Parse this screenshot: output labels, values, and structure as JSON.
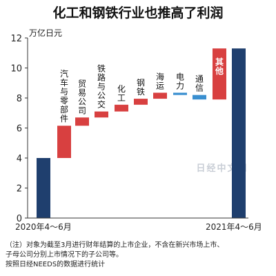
{
  "chart_data": {
    "type": "bar",
    "title": "化工和钢铁行业也推高了利润",
    "unit_label": "万亿日元",
    "y_ticks": [
      0,
      2,
      4,
      6,
      8,
      10,
      12
    ],
    "ylim": [
      0,
      12
    ],
    "start": {
      "label": "2020年4～6月",
      "value": 4.0
    },
    "end": {
      "label": "2021年4～6月",
      "value": 11.3
    },
    "steps": [
      {
        "label": "汽车与零部件",
        "from": 4.0,
        "to": 6.15
      },
      {
        "label": "贸易公司",
        "from": 6.15,
        "to": 6.7
      },
      {
        "label": "铁路与公交",
        "from": 6.7,
        "to": 7.1
      },
      {
        "label": "化工",
        "from": 7.1,
        "to": 7.55
      },
      {
        "label": "钢铁",
        "from": 7.55,
        "to": 7.95
      },
      {
        "label": "海运",
        "from": 7.95,
        "to": 8.35
      },
      {
        "label": "电力",
        "from": 8.35,
        "to": 8.2
      },
      {
        "label": "通信",
        "from": 8.2,
        "to": 7.9
      },
      {
        "label": "其他",
        "from": 7.9,
        "to": 11.3
      }
    ],
    "colors": {
      "total": "#1f3f6e",
      "increase": "#d84040",
      "decrease": "#3a8fd0"
    }
  },
  "watermark": "日经中文网",
  "notes": {
    "line1": "（注）对象为截至3月进行财年结算的上市企业，不含在新兴市场上市、",
    "line2": "子母公司分别上市情况下的子公司等。",
    "line3": "按照日经NEEDS的数据进行统计"
  }
}
